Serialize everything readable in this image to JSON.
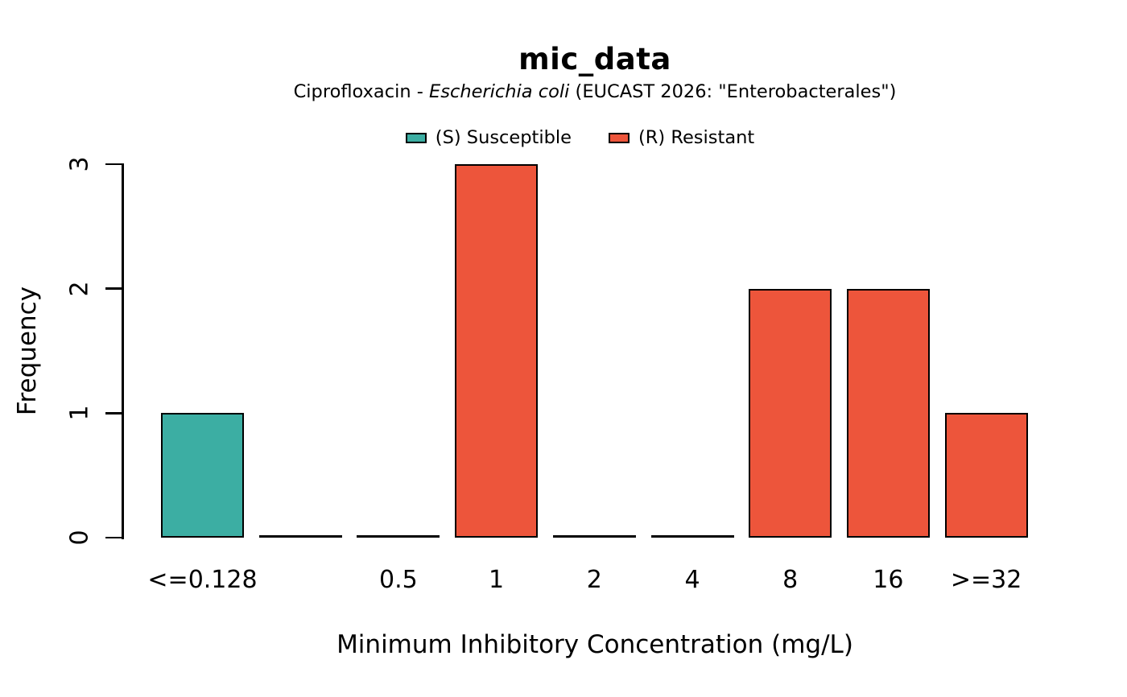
{
  "figure": {
    "subtitle_parts": {
      "prefix": "Ciprofloxacin - ",
      "italic": "Escherichia coli",
      "suffix": " (EUCAST 2026: \"Enterobacterales\")"
    }
  },
  "chart_data": {
    "type": "bar",
    "title": "mic_data",
    "subtitle": "Ciprofloxacin - Escherichia coli (EUCAST 2026: \"Enterobacterales\")",
    "xlabel": "Minimum Inhibitory Concentration (mg/L)",
    "ylabel": "Frequency",
    "categories": [
      "<=0.128",
      "",
      "0.5",
      "1",
      "2",
      "4",
      "8",
      "16",
      ">=32"
    ],
    "values": [
      1,
      0,
      0,
      3,
      0,
      0,
      2,
      2,
      1
    ],
    "bar_colors": [
      "#3CAEA3",
      "",
      "",
      "#ED553B",
      "",
      "",
      "#ED553B",
      "#ED553B",
      "#ED553B"
    ],
    "ylim": [
      0,
      3
    ],
    "yticks": [
      "0",
      "1",
      "2",
      "3"
    ],
    "grid": false,
    "legend_position": "top",
    "legend": [
      {
        "key": "susceptible",
        "label": "(S) Susceptible",
        "color": "#3CAEA3"
      },
      {
        "key": "resistant",
        "label": "(R) Resistant",
        "color": "#ED553B"
      }
    ],
    "colors": {
      "susceptible": "#3CAEA3",
      "resistant": "#ED553B",
      "axis": "#000000",
      "background": "#FFFFFF"
    }
  }
}
